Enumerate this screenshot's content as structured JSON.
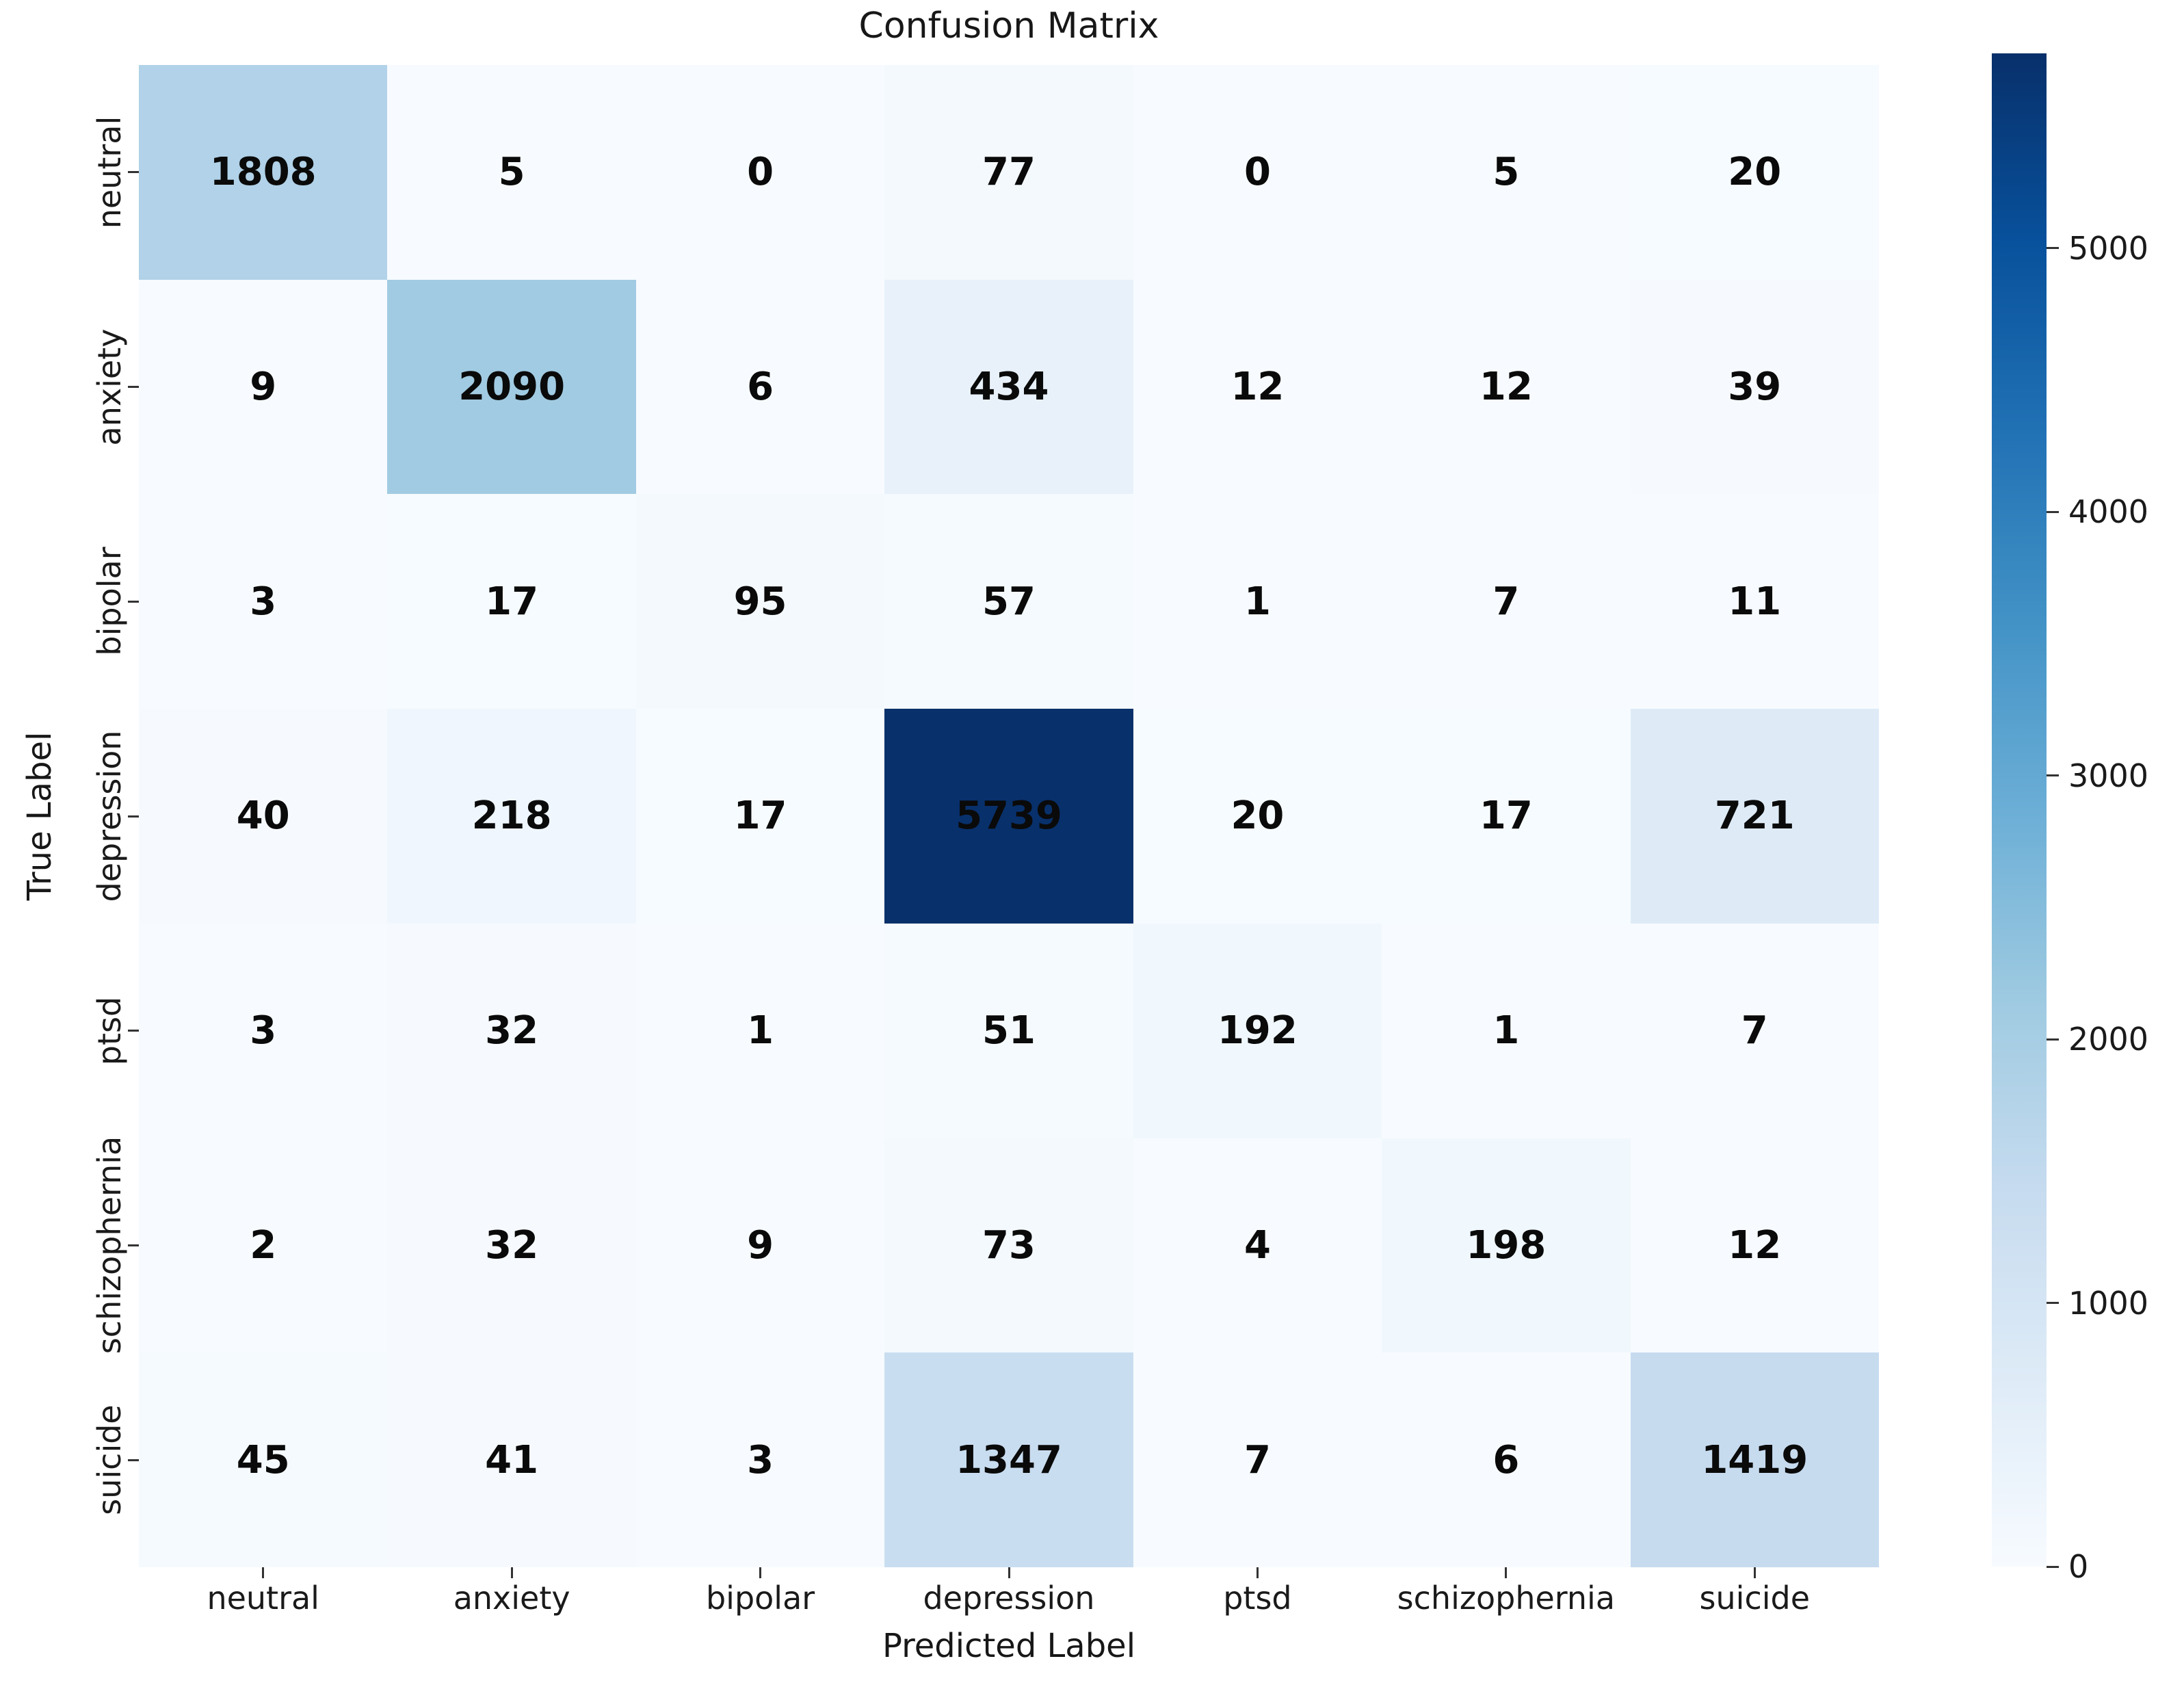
{
  "title": "Confusion Matrix",
  "chart_data": {
    "type": "heatmap",
    "title": "Confusion Matrix",
    "xlabel": "Predicted Label",
    "ylabel": "True Label",
    "x_categories": [
      "neutral",
      "anxiety",
      "bipolar",
      "depression",
      "ptsd",
      "schizophernia",
      "suicide"
    ],
    "y_categories": [
      "neutral",
      "anxiety",
      "bipolar",
      "depression",
      "ptsd",
      "schizophernia",
      "suicide"
    ],
    "rows": [
      [
        1808,
        5,
        0,
        77,
        0,
        5,
        20
      ],
      [
        9,
        2090,
        6,
        434,
        12,
        12,
        39
      ],
      [
        3,
        17,
        95,
        57,
        1,
        7,
        11
      ],
      [
        40,
        218,
        17,
        5739,
        20,
        17,
        721
      ],
      [
        3,
        32,
        1,
        51,
        192,
        1,
        7
      ],
      [
        2,
        32,
        9,
        73,
        4,
        198,
        12
      ],
      [
        45,
        41,
        3,
        1347,
        7,
        6,
        1419
      ]
    ],
    "vmin": 0,
    "vmax": 5739,
    "colorbar_ticks": [
      0,
      1000,
      2000,
      3000,
      4000,
      5000
    ],
    "colormap": "Blues",
    "legend_position": "right-colorbar",
    "grid": false
  },
  "colors": {
    "cmap_stops": [
      "#f7fbff",
      "#deebf7",
      "#c6dbef",
      "#9ecae1",
      "#6baed6",
      "#4292c6",
      "#2171b5",
      "#08519c",
      "#08306b"
    ],
    "annotation_text": "#0a0a0a",
    "tick_text": "#1a1a1a",
    "background": "#ffffff"
  }
}
